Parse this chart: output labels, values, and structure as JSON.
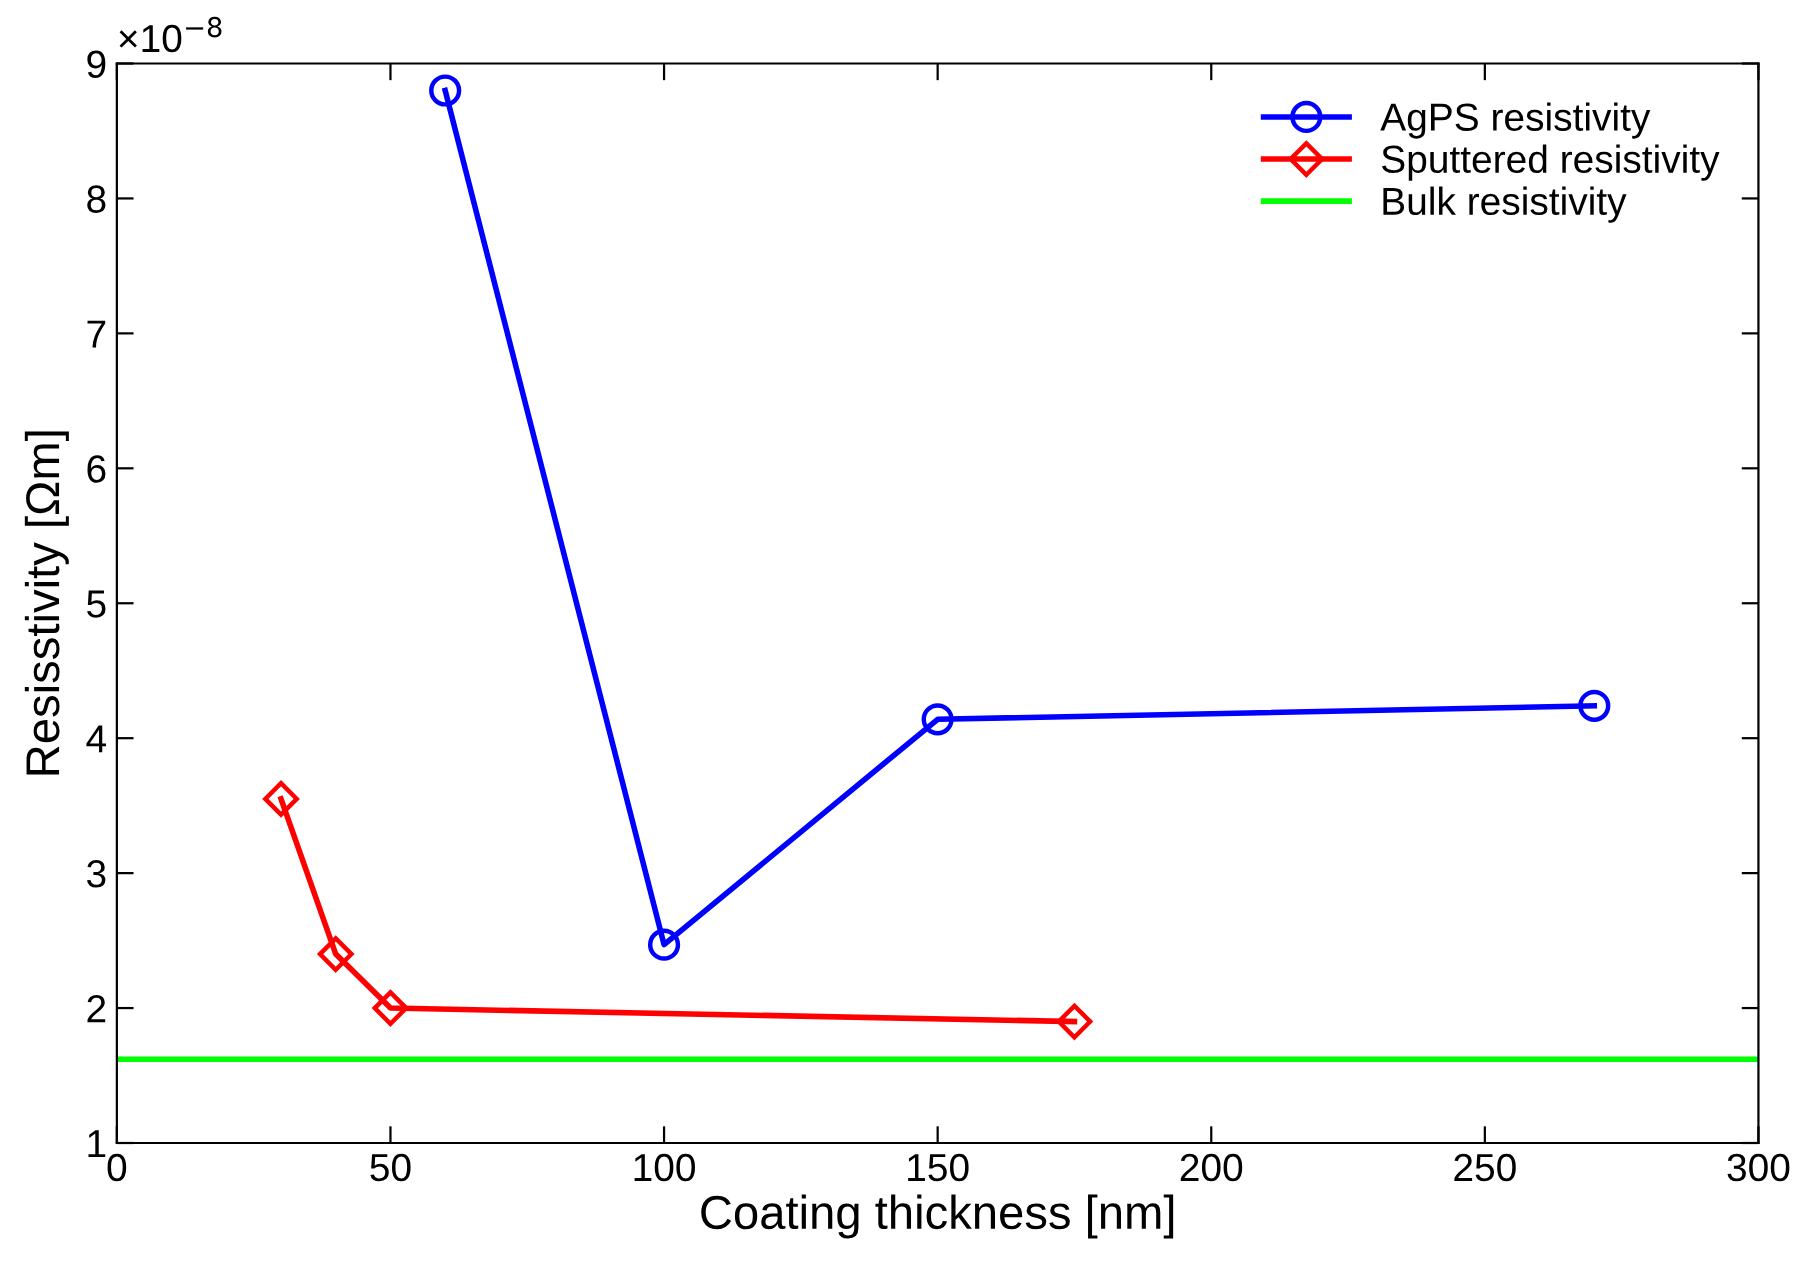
{
  "chart_data": {
    "type": "line",
    "xlabel": "Coating thickness [nm]",
    "ylabel": "Resisstivity [Ωm]",
    "annotations": [
      "×10$^{−8}$"
    ],
    "xlim": [
      0,
      300
    ],
    "xticks": [
      0,
      50,
      100,
      150,
      200,
      250,
      300
    ],
    "ylim": [
      1,
      9
    ],
    "yticks": [
      1,
      2,
      3,
      4,
      5,
      6,
      7,
      8,
      9
    ],
    "grid": false,
    "legend": "top right",
    "series": [
      {
        "name": "AgPS resistivity",
        "color": "#0000ff",
        "marker": "circle",
        "x": [
          60,
          100,
          150,
          270
        ],
        "values": [
          8.8,
          2.47,
          4.14,
          4.24
        ]
      },
      {
        "name": "Sputtered resistivity",
        "color": "#ff0000",
        "marker": "diamond",
        "x": [
          30,
          40,
          50,
          175
        ],
        "values": [
          3.55,
          2.4,
          2.0,
          1.9
        ]
      },
      {
        "name": "Bulk resistivity",
        "color": "#00ff00",
        "marker": "none",
        "x": [
          0,
          300
        ],
        "values": [
          1.62,
          1.62
        ]
      }
    ]
  }
}
